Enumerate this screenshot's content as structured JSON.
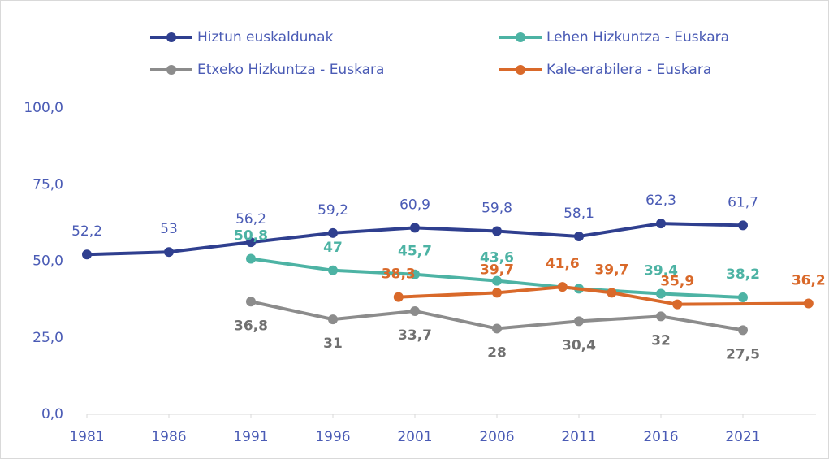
{
  "chart_data": {
    "type": "line",
    "xlim": [
      1981,
      2026
    ],
    "xticks": [
      1981,
      1986,
      1991,
      1996,
      2001,
      2006,
      2011,
      2016,
      2021
    ],
    "ylim": [
      0,
      100
    ],
    "yticks": [
      {
        "value": 0,
        "label": "0,0"
      },
      {
        "value": 25,
        "label": "25,0"
      },
      {
        "value": 50,
        "label": "50,0"
      },
      {
        "value": 75,
        "label": "75,0"
      },
      {
        "value": 100,
        "label": "100,0"
      }
    ],
    "legend": "top",
    "series": [
      {
        "name": "Hiztun euskaldunak",
        "color": "#2f3f8f",
        "label_color": "#4a5bb5",
        "label_side": "above",
        "x": [
          1981,
          1986,
          1991,
          1996,
          2001,
          2006,
          2011,
          2016,
          2021
        ],
        "values": [
          52.2,
          53,
          56.2,
          59.2,
          60.9,
          59.8,
          58.1,
          62.3,
          61.7
        ],
        "value_labels": [
          "52,2",
          "53",
          "56,2",
          "59,2",
          "60,9",
          "59,8",
          "58,1",
          "62,3",
          "61,7"
        ]
      },
      {
        "name": "Lehen Hizkuntza - Euskara",
        "color": "#4db3a4",
        "label_color": "#4db3a4",
        "label_side": "above",
        "x": [
          1991,
          1996,
          2001,
          2006,
          2011,
          2016,
          2021
        ],
        "values": [
          50.8,
          47,
          45.7,
          43.6,
          41,
          39.4,
          38.2
        ],
        "value_labels": [
          "50,8",
          "47",
          "45,7",
          "43,6",
          null,
          "39,4",
          "38,2"
        ]
      },
      {
        "name": "Etxeko Hizkuntza - Euskara",
        "color": "#8c8c8c",
        "label_color": "#707070",
        "label_side": "below",
        "x": [
          1991,
          1996,
          2001,
          2006,
          2011,
          2016,
          2021
        ],
        "values": [
          36.8,
          31,
          33.7,
          28,
          30.4,
          32,
          27.5
        ],
        "value_labels": [
          "36,8",
          "31",
          "33,7",
          "28",
          "30,4",
          "32",
          "27,5"
        ]
      },
      {
        "name": "Kale-erabilera - Euskara",
        "color": "#d9692a",
        "label_color": "#d9692a",
        "label_side": "above",
        "x": [
          2000,
          2006,
          2010,
          2013,
          2017,
          2025
        ],
        "values": [
          38.3,
          39.7,
          41.6,
          39.7,
          35.9,
          36.2
        ],
        "value_labels": [
          "38,3",
          "39,7",
          "41,6",
          "39,7",
          "35,9",
          "36,2"
        ]
      }
    ]
  }
}
